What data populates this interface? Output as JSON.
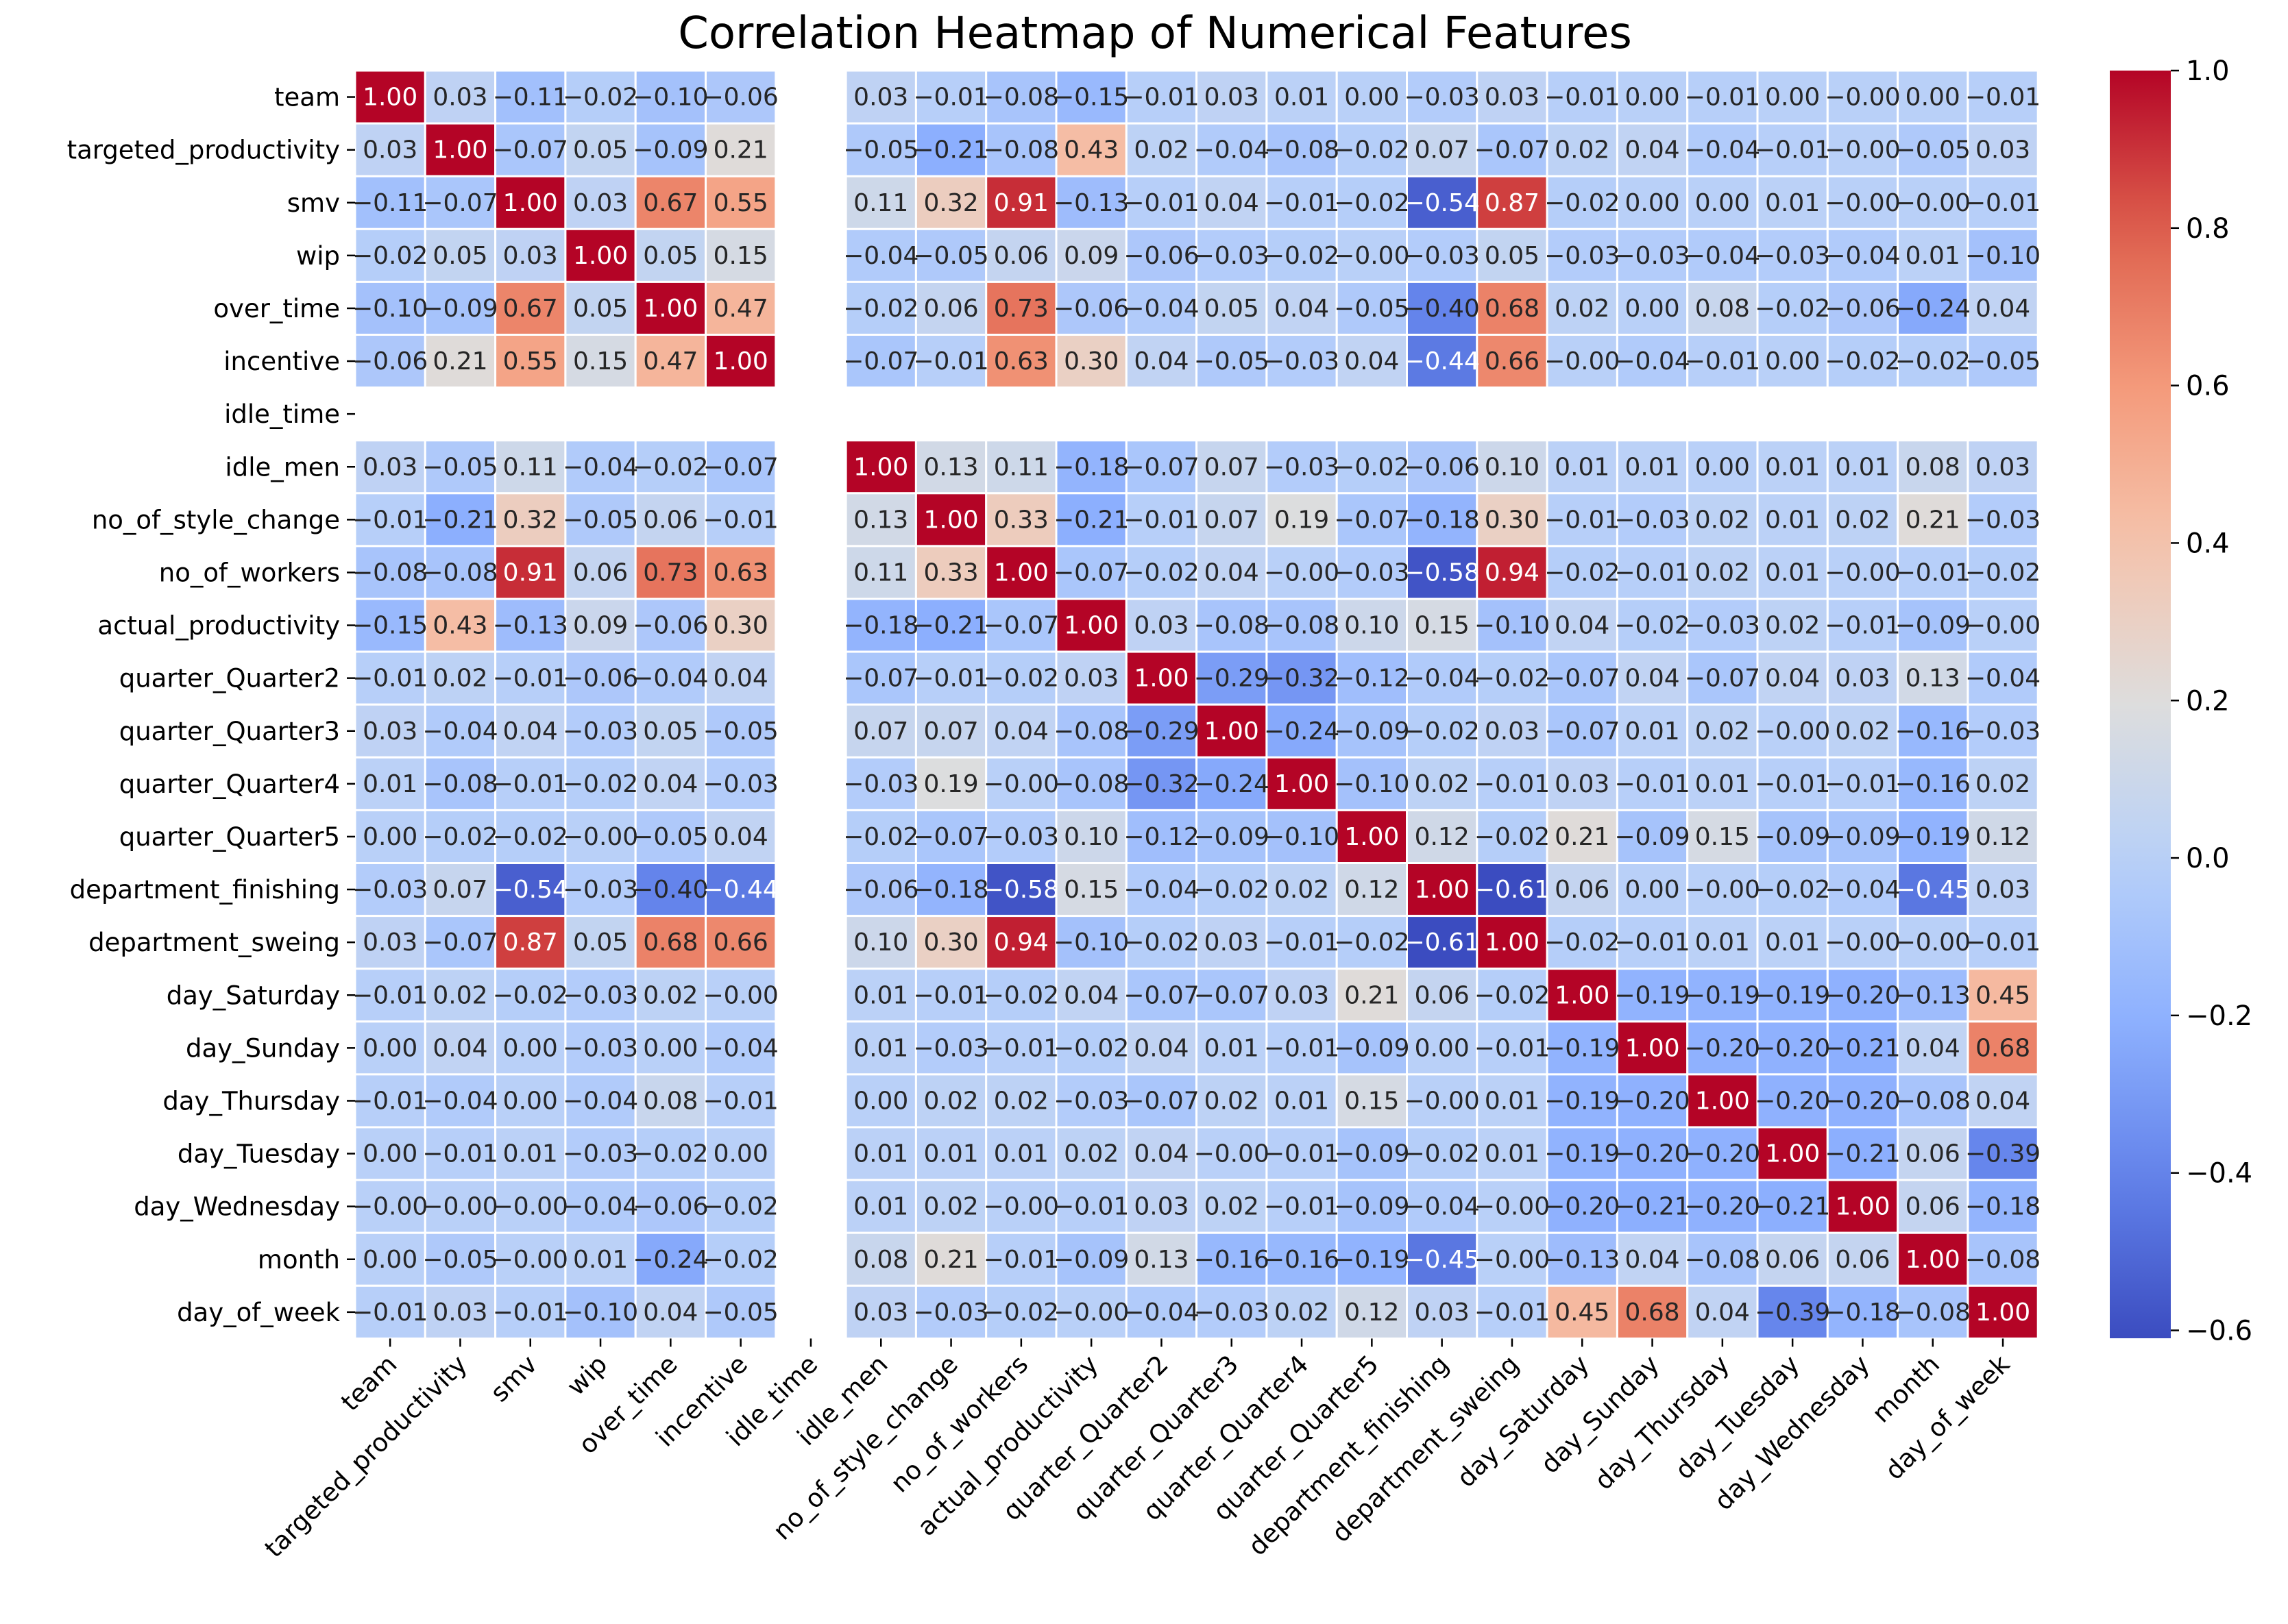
{
  "chart_data": {
    "type": "heatmap",
    "title": "Correlation Heatmap of Numerical Features",
    "labels": [
      "team",
      "targeted_productivity",
      "smv",
      "wip",
      "over_time",
      "incentive",
      "idle_time",
      "idle_men",
      "no_of_style_change",
      "no_of_workers",
      "actual_productivity",
      "quarter_Quarter2",
      "quarter_Quarter3",
      "quarter_Quarter4",
      "quarter_Quarter5",
      "department_finishing ",
      "department_sweing",
      "day_Saturday",
      "day_Sunday",
      "day_Thursday",
      "day_Tuesday",
      "day_Wednesday",
      "month",
      "day_of_week"
    ],
    "matrix": [
      [
        1.0,
        0.03,
        -0.11,
        -0.02,
        -0.1,
        -0.06,
        null,
        0.03,
        -0.01,
        -0.08,
        -0.15,
        -0.01,
        0.03,
        0.01,
        0.0,
        -0.03,
        0.03,
        -0.01,
        0.0,
        -0.01,
        0.0,
        -0.0,
        0.0,
        -0.01
      ],
      [
        0.03,
        1.0,
        -0.07,
        0.05,
        -0.09,
        0.21,
        null,
        -0.05,
        -0.21,
        -0.08,
        0.43,
        0.02,
        -0.04,
        -0.08,
        -0.02,
        0.07,
        -0.07,
        0.02,
        0.04,
        -0.04,
        -0.01,
        -0.0,
        -0.05,
        0.03
      ],
      [
        -0.11,
        -0.07,
        1.0,
        0.03,
        0.67,
        0.55,
        null,
        0.11,
        0.32,
        0.91,
        -0.13,
        -0.01,
        0.04,
        -0.01,
        -0.02,
        -0.54,
        0.87,
        -0.02,
        0.0,
        0.0,
        0.01,
        -0.0,
        -0.0,
        -0.01
      ],
      [
        -0.02,
        0.05,
        0.03,
        1.0,
        0.05,
        0.15,
        null,
        -0.04,
        -0.05,
        0.06,
        0.09,
        -0.06,
        -0.03,
        -0.02,
        -0.0,
        -0.03,
        0.05,
        -0.03,
        -0.03,
        -0.04,
        -0.03,
        -0.04,
        0.01,
        -0.1
      ],
      [
        -0.1,
        -0.09,
        0.67,
        0.05,
        1.0,
        0.47,
        null,
        -0.02,
        0.06,
        0.73,
        -0.06,
        -0.04,
        0.05,
        0.04,
        -0.05,
        -0.4,
        0.68,
        0.02,
        0.0,
        0.08,
        -0.02,
        -0.06,
        -0.24,
        0.04
      ],
      [
        -0.06,
        0.21,
        0.55,
        0.15,
        0.47,
        1.0,
        null,
        -0.07,
        -0.01,
        0.63,
        0.3,
        0.04,
        -0.05,
        -0.03,
        0.04,
        -0.44,
        0.66,
        -0.0,
        -0.04,
        -0.01,
        0.0,
        -0.02,
        -0.02,
        -0.05
      ],
      [
        null,
        null,
        null,
        null,
        null,
        null,
        null,
        null,
        null,
        null,
        null,
        null,
        null,
        null,
        null,
        null,
        null,
        null,
        null,
        null,
        null,
        null,
        null,
        null
      ],
      [
        0.03,
        -0.05,
        0.11,
        -0.04,
        -0.02,
        -0.07,
        null,
        1.0,
        0.13,
        0.11,
        -0.18,
        -0.07,
        0.07,
        -0.03,
        -0.02,
        -0.06,
        0.1,
        0.01,
        0.01,
        0.0,
        0.01,
        0.01,
        0.08,
        0.03
      ],
      [
        -0.01,
        -0.21,
        0.32,
        -0.05,
        0.06,
        -0.01,
        null,
        0.13,
        1.0,
        0.33,
        -0.21,
        -0.01,
        0.07,
        0.19,
        -0.07,
        -0.18,
        0.3,
        -0.01,
        -0.03,
        0.02,
        0.01,
        0.02,
        0.21,
        -0.03
      ],
      [
        -0.08,
        -0.08,
        0.91,
        0.06,
        0.73,
        0.63,
        null,
        0.11,
        0.33,
        1.0,
        -0.07,
        -0.02,
        0.04,
        -0.0,
        -0.03,
        -0.58,
        0.94,
        -0.02,
        -0.01,
        0.02,
        0.01,
        -0.0,
        -0.01,
        -0.02
      ],
      [
        -0.15,
        0.43,
        -0.13,
        0.09,
        -0.06,
        0.3,
        null,
        -0.18,
        -0.21,
        -0.07,
        1.0,
        0.03,
        -0.08,
        -0.08,
        0.1,
        0.15,
        -0.1,
        0.04,
        -0.02,
        -0.03,
        0.02,
        -0.01,
        -0.09,
        -0.0
      ],
      [
        -0.01,
        0.02,
        -0.01,
        -0.06,
        -0.04,
        0.04,
        null,
        -0.07,
        -0.01,
        -0.02,
        0.03,
        1.0,
        -0.29,
        -0.32,
        -0.12,
        -0.04,
        -0.02,
        -0.07,
        0.04,
        -0.07,
        0.04,
        0.03,
        0.13,
        -0.04
      ],
      [
        0.03,
        -0.04,
        0.04,
        -0.03,
        0.05,
        -0.05,
        null,
        0.07,
        0.07,
        0.04,
        -0.08,
        -0.29,
        1.0,
        -0.24,
        -0.09,
        -0.02,
        0.03,
        -0.07,
        0.01,
        0.02,
        -0.0,
        0.02,
        -0.16,
        -0.03
      ],
      [
        0.01,
        -0.08,
        -0.01,
        -0.02,
        0.04,
        -0.03,
        null,
        -0.03,
        0.19,
        -0.0,
        -0.08,
        -0.32,
        -0.24,
        1.0,
        -0.1,
        0.02,
        -0.01,
        0.03,
        -0.01,
        0.01,
        -0.01,
        -0.01,
        -0.16,
        0.02
      ],
      [
        0.0,
        -0.02,
        -0.02,
        -0.0,
        -0.05,
        0.04,
        null,
        -0.02,
        -0.07,
        -0.03,
        0.1,
        -0.12,
        -0.09,
        -0.1,
        1.0,
        0.12,
        -0.02,
        0.21,
        -0.09,
        0.15,
        -0.09,
        -0.09,
        -0.19,
        0.12
      ],
      [
        -0.03,
        0.07,
        -0.54,
        -0.03,
        -0.4,
        -0.44,
        null,
        -0.06,
        -0.18,
        -0.58,
        0.15,
        -0.04,
        -0.02,
        0.02,
        0.12,
        1.0,
        -0.61,
        0.06,
        0.0,
        -0.0,
        -0.02,
        -0.04,
        -0.45,
        0.03
      ],
      [
        0.03,
        -0.07,
        0.87,
        0.05,
        0.68,
        0.66,
        null,
        0.1,
        0.3,
        0.94,
        -0.1,
        -0.02,
        0.03,
        -0.01,
        -0.02,
        -0.61,
        1.0,
        -0.02,
        -0.01,
        0.01,
        0.01,
        -0.0,
        -0.0,
        -0.01
      ],
      [
        -0.01,
        0.02,
        -0.02,
        -0.03,
        0.02,
        -0.0,
        null,
        0.01,
        -0.01,
        -0.02,
        0.04,
        -0.07,
        -0.07,
        0.03,
        0.21,
        0.06,
        -0.02,
        1.0,
        -0.19,
        -0.19,
        -0.19,
        -0.2,
        -0.13,
        0.45
      ],
      [
        0.0,
        0.04,
        0.0,
        -0.03,
        0.0,
        -0.04,
        null,
        0.01,
        -0.03,
        -0.01,
        -0.02,
        0.04,
        0.01,
        -0.01,
        -0.09,
        0.0,
        -0.01,
        -0.19,
        1.0,
        -0.2,
        -0.2,
        -0.21,
        0.04,
        0.68
      ],
      [
        -0.01,
        -0.04,
        0.0,
        -0.04,
        0.08,
        -0.01,
        null,
        0.0,
        0.02,
        0.02,
        -0.03,
        -0.07,
        0.02,
        0.01,
        0.15,
        -0.0,
        0.01,
        -0.19,
        -0.2,
        1.0,
        -0.2,
        -0.2,
        -0.08,
        0.04
      ],
      [
        0.0,
        -0.01,
        0.01,
        -0.03,
        -0.02,
        0.0,
        null,
        0.01,
        0.01,
        0.01,
        0.02,
        0.04,
        -0.0,
        -0.01,
        -0.09,
        -0.02,
        0.01,
        -0.19,
        -0.2,
        -0.2,
        1.0,
        -0.21,
        0.06,
        -0.39
      ],
      [
        -0.0,
        -0.0,
        -0.0,
        -0.04,
        -0.06,
        -0.02,
        null,
        0.01,
        0.02,
        -0.0,
        -0.01,
        0.03,
        0.02,
        -0.01,
        -0.09,
        -0.04,
        -0.0,
        -0.2,
        -0.21,
        -0.2,
        -0.21,
        1.0,
        0.06,
        -0.18
      ],
      [
        0.0,
        -0.05,
        -0.0,
        0.01,
        -0.24,
        -0.02,
        null,
        0.08,
        0.21,
        -0.01,
        -0.09,
        0.13,
        -0.16,
        -0.16,
        -0.19,
        -0.45,
        -0.0,
        -0.13,
        0.04,
        -0.08,
        0.06,
        0.06,
        1.0,
        -0.08
      ],
      [
        -0.01,
        0.03,
        -0.01,
        -0.1,
        0.04,
        -0.05,
        null,
        0.03,
        -0.03,
        -0.02,
        -0.0,
        -0.04,
        -0.03,
        0.02,
        0.12,
        0.03,
        -0.01,
        0.45,
        0.68,
        0.04,
        -0.39,
        -0.18,
        -0.08,
        1.0
      ]
    ],
    "value_range": [
      -0.61,
      1.0
    ],
    "colormap": "coolwarm",
    "colorbar_ticks": [
      "1.0",
      "0.8",
      "0.6",
      "0.4",
      "0.2",
      "0.0",
      "−0.2",
      "−0.4",
      "−0.6"
    ],
    "colorbar_tick_values": [
      1.0,
      0.8,
      0.6,
      0.4,
      0.2,
      0.0,
      -0.2,
      -0.4,
      -0.6
    ],
    "annotations_format": "0.00",
    "missing_value_label": "-"
  }
}
